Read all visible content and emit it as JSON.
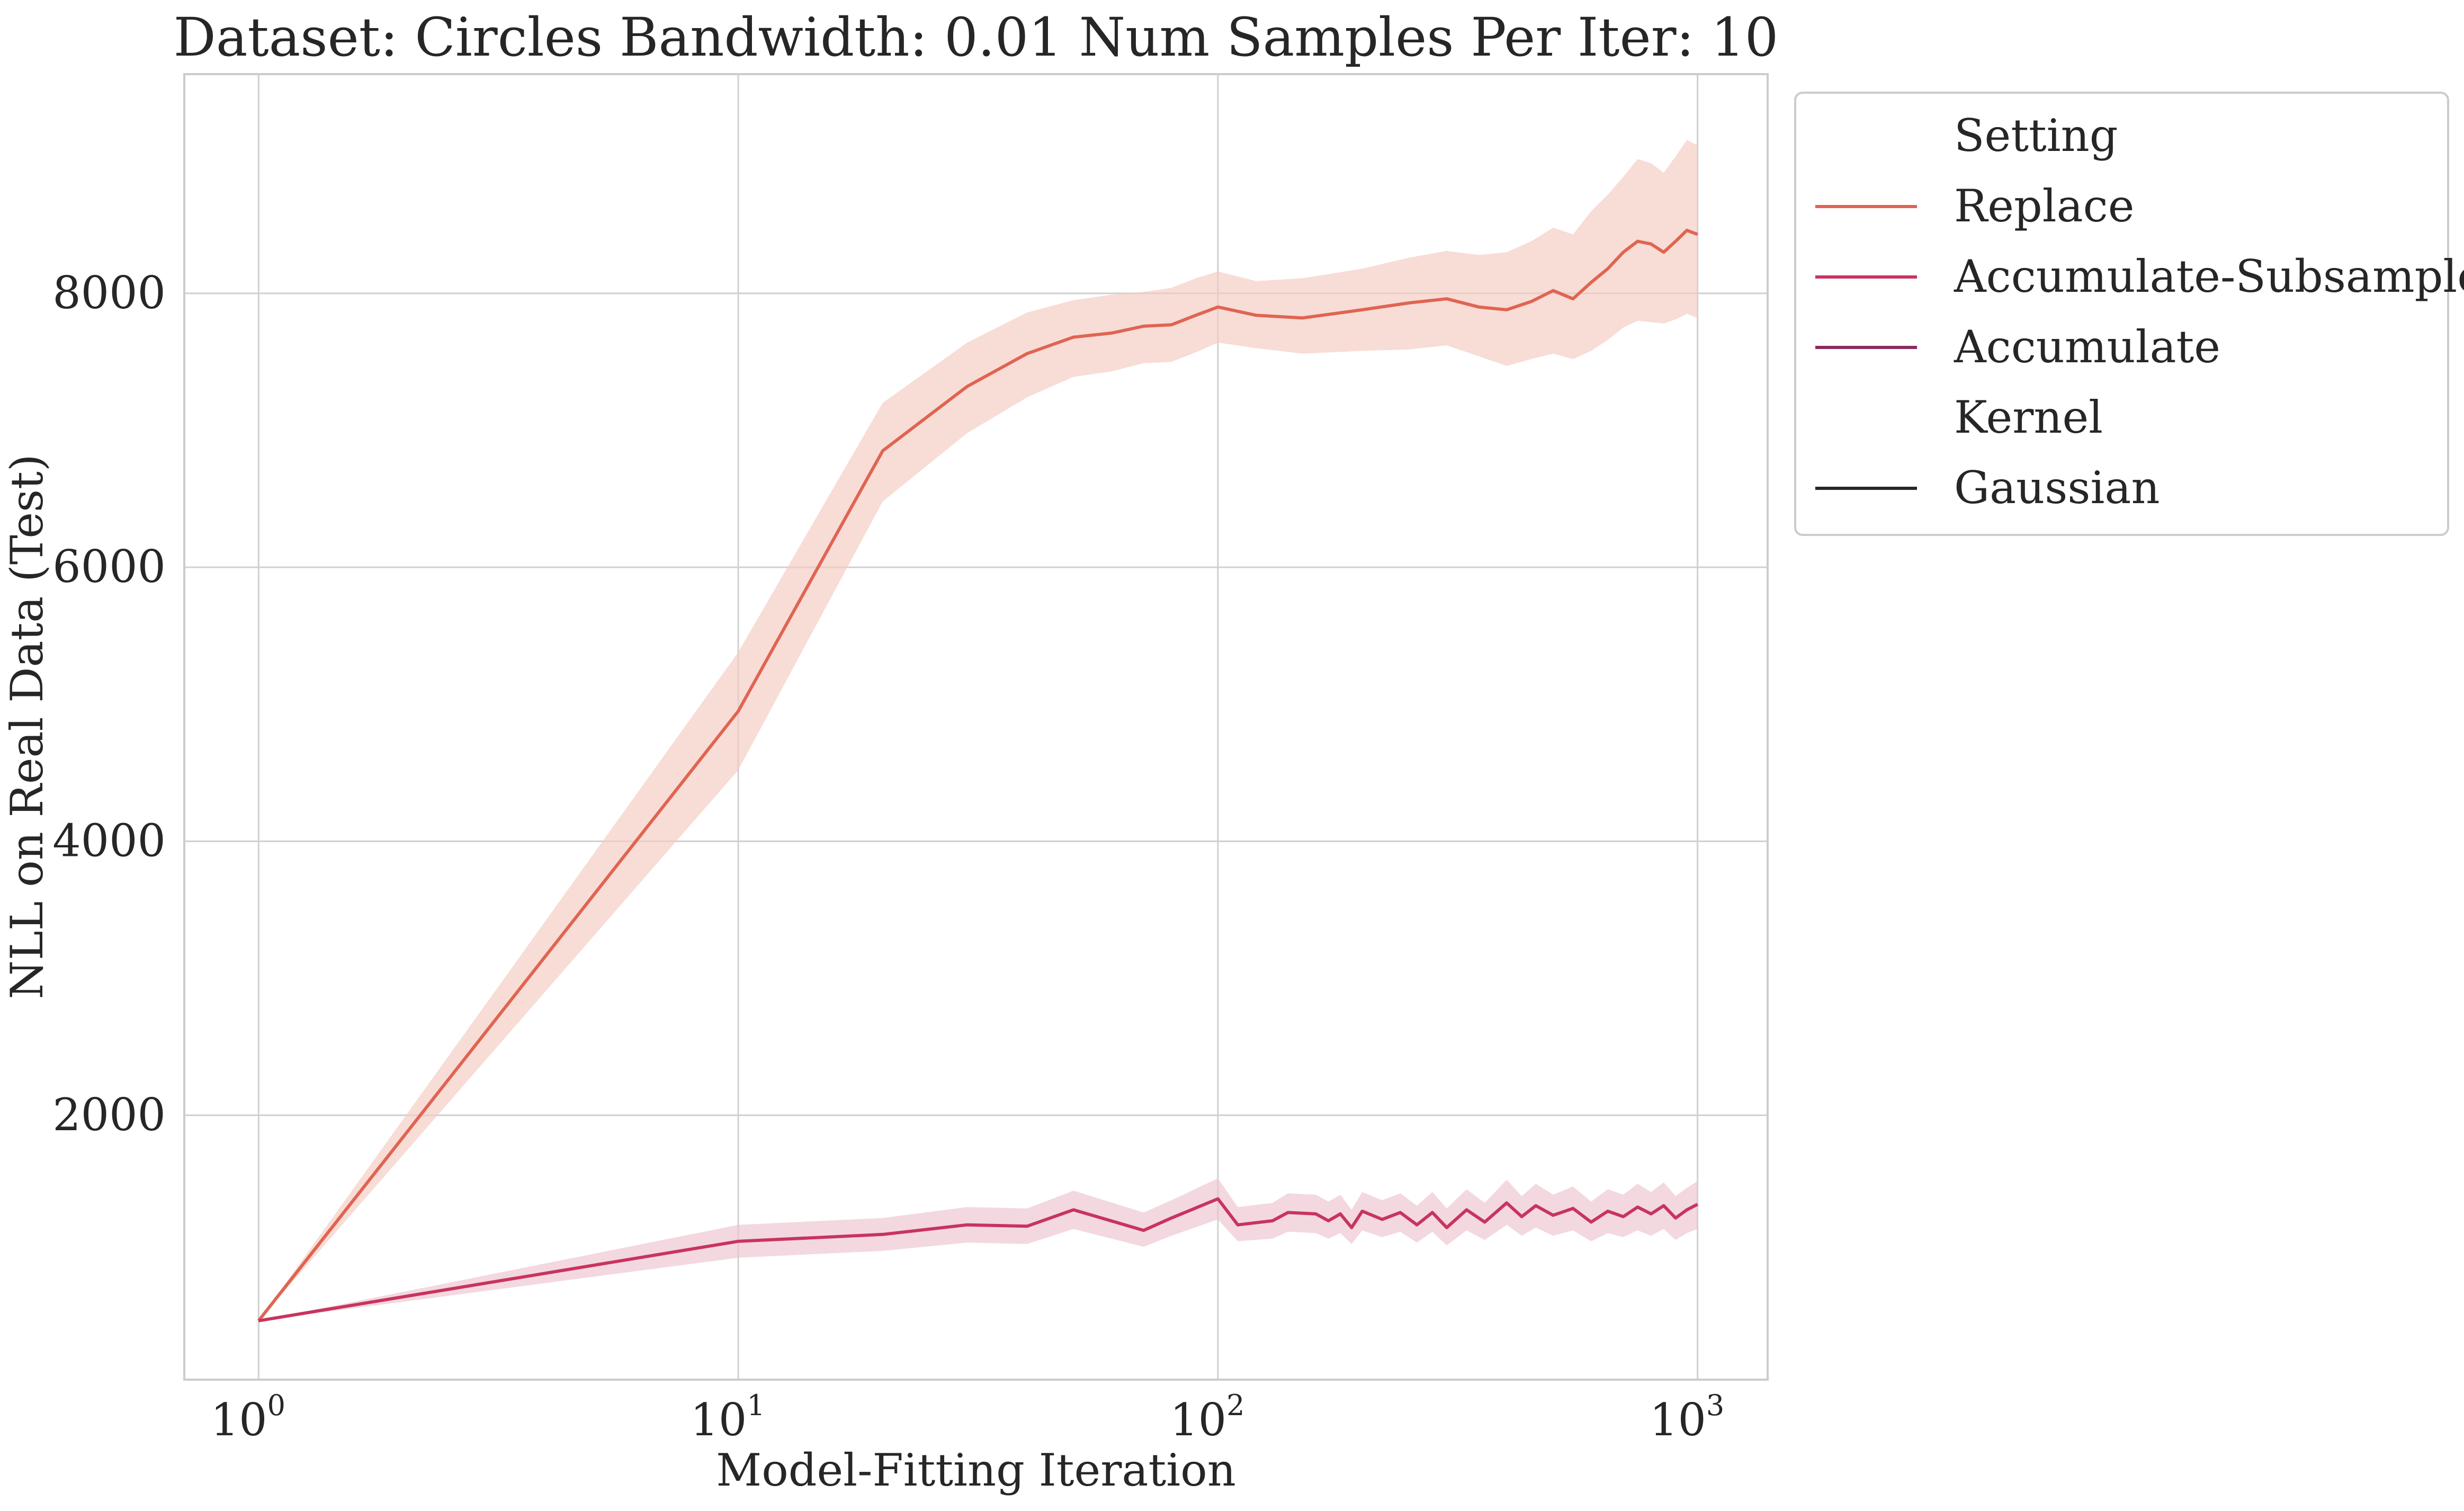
{
  "chart_data": {
    "type": "line",
    "title": "Dataset: Circles Bandwidth: 0.01 Num Samples Per Iter: 10",
    "xlabel": "Model-Fitting Iteration",
    "ylabel": "NLL on Real Data (Test)",
    "x_scale": "log",
    "xlim": [
      0.7,
      1400
    ],
    "ylim": [
      70,
      9600
    ],
    "x_ticks": [
      {
        "value": 1,
        "base": "10",
        "exp": "0"
      },
      {
        "value": 10,
        "base": "10",
        "exp": "1"
      },
      {
        "value": 100,
        "base": "10",
        "exp": "2"
      },
      {
        "value": 1000,
        "base": "10",
        "exp": "3"
      }
    ],
    "y_ticks": [
      {
        "value": 2000,
        "label": "2000"
      },
      {
        "value": 4000,
        "label": "4000"
      },
      {
        "value": 6000,
        "label": "6000"
      },
      {
        "value": 8000,
        "label": "8000"
      }
    ],
    "grid": true,
    "legend": {
      "placement": "outside-right-top",
      "groups": [
        {
          "title": "Setting",
          "entries": [
            {
              "label": "Replace",
              "color": "#e06452"
            },
            {
              "label": "Accumulate-Subsample",
              "color": "#c8345e"
            },
            {
              "label": "Accumulate",
              "color": "#8b2a5f"
            }
          ]
        },
        {
          "title": "Kernel",
          "entries": [
            {
              "label": "Gaussian",
              "color": "#262626"
            }
          ]
        }
      ]
    },
    "series": [
      {
        "name": "Replace",
        "color": "#e06452",
        "band_color": "#f5c9c0",
        "x": [
          1,
          10,
          20,
          30,
          40,
          50,
          60,
          70,
          80,
          90,
          100,
          120,
          150,
          200,
          250,
          300,
          350,
          400,
          450,
          500,
          550,
          600,
          650,
          700,
          750,
          800,
          850,
          900,
          950,
          1000
        ],
        "y": [
          500,
          4950,
          6850,
          7320,
          7560,
          7680,
          7710,
          7760,
          7770,
          7840,
          7900,
          7840,
          7820,
          7880,
          7930,
          7960,
          7900,
          7880,
          7940,
          8020,
          7960,
          8080,
          8180,
          8300,
          8380,
          8360,
          8300,
          8380,
          8460,
          8430
        ],
        "lower": [
          500,
          4520,
          6480,
          6980,
          7240,
          7390,
          7430,
          7490,
          7500,
          7570,
          7640,
          7600,
          7560,
          7580,
          7590,
          7620,
          7540,
          7470,
          7520,
          7560,
          7520,
          7580,
          7660,
          7750,
          7800,
          7790,
          7780,
          7810,
          7850,
          7820
        ],
        "upper": [
          500,
          5380,
          7200,
          7640,
          7860,
          7950,
          7990,
          8010,
          8040,
          8110,
          8160,
          8090,
          8110,
          8180,
          8260,
          8310,
          8280,
          8300,
          8380,
          8480,
          8430,
          8600,
          8720,
          8850,
          8980,
          8950,
          8880,
          9000,
          9120,
          9080
        ]
      },
      {
        "name": "Accumulate-Subsample",
        "color": "#c8345e",
        "band_color": "#ecc3cf",
        "x": [
          1,
          10,
          20,
          30,
          40,
          50,
          70,
          80,
          100,
          110,
          130,
          140,
          160,
          170,
          180,
          190,
          200,
          220,
          240,
          260,
          280,
          300,
          330,
          360,
          400,
          430,
          460,
          500,
          550,
          600,
          650,
          700,
          750,
          800,
          850,
          900,
          950,
          1000
        ],
        "y": [
          500,
          1080,
          1130,
          1200,
          1190,
          1310,
          1160,
          1250,
          1390,
          1200,
          1230,
          1290,
          1280,
          1230,
          1280,
          1180,
          1300,
          1240,
          1290,
          1200,
          1290,
          1180,
          1310,
          1220,
          1360,
          1260,
          1340,
          1270,
          1320,
          1220,
          1300,
          1260,
          1330,
          1280,
          1340,
          1250,
          1310,
          1350
        ],
        "lower": [
          500,
          960,
          1010,
          1070,
          1060,
          1170,
          1040,
          1120,
          1240,
          1080,
          1100,
          1150,
          1140,
          1100,
          1140,
          1060,
          1160,
          1110,
          1150,
          1070,
          1150,
          1050,
          1160,
          1090,
          1200,
          1120,
          1180,
          1120,
          1160,
          1080,
          1140,
          1110,
          1160,
          1120,
          1170,
          1090,
          1140,
          1170
        ],
        "upper": [
          500,
          1200,
          1250,
          1330,
          1320,
          1450,
          1290,
          1380,
          1540,
          1330,
          1360,
          1430,
          1420,
          1370,
          1420,
          1310,
          1440,
          1380,
          1430,
          1340,
          1440,
          1320,
          1460,
          1360,
          1530,
          1410,
          1500,
          1420,
          1480,
          1370,
          1460,
          1420,
          1500,
          1440,
          1510,
          1410,
          1470,
          1520
        ]
      }
    ]
  }
}
